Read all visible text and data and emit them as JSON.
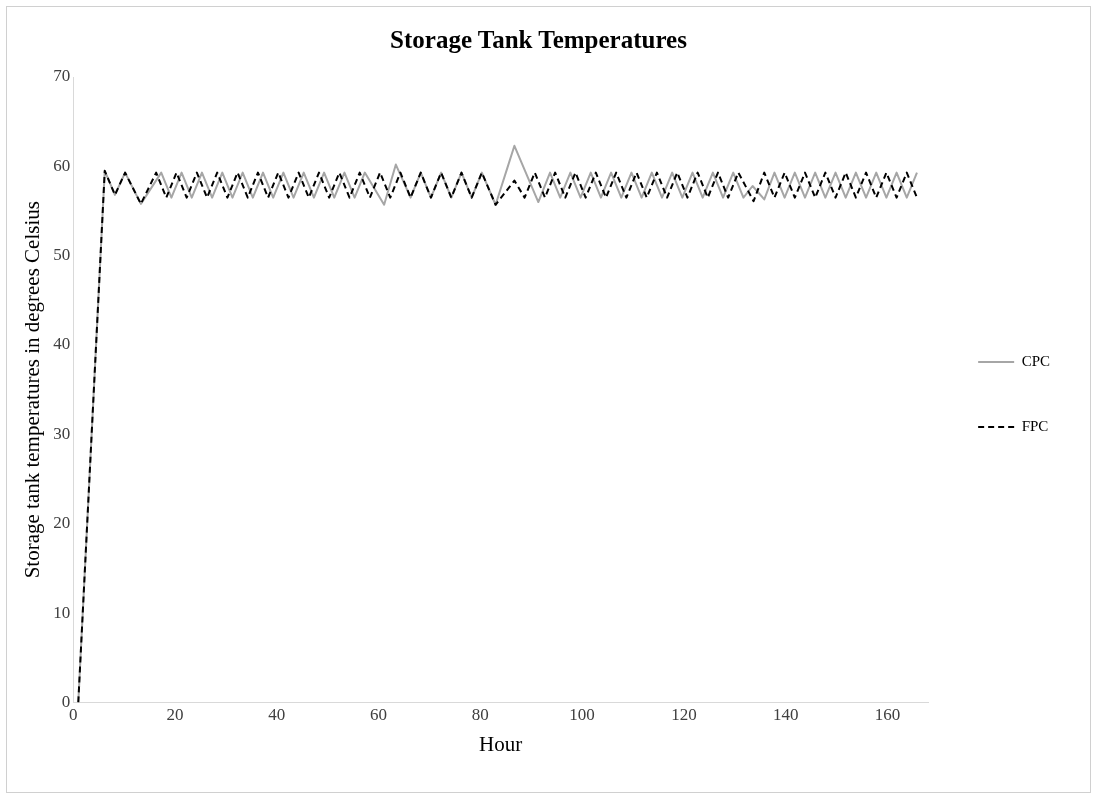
{
  "chart_data": {
    "type": "line",
    "title": "Storage Tank Temperatures",
    "xlabel": "Hour",
    "ylabel": "Storage tank temperatures in degrees Celsius",
    "xlim": [
      0,
      168
    ],
    "xticks": [
      0,
      20,
      40,
      60,
      80,
      100,
      120,
      140,
      160
    ],
    "ylim": [
      0,
      70
    ],
    "yticks": [
      0,
      10,
      20,
      30,
      40,
      50,
      60,
      70
    ],
    "grid": false,
    "legend": "right",
    "marker": "none",
    "series": [
      {
        "name": "CPC",
        "color": "#a6a6a6",
        "line_style": "solid",
        "x": [
          1,
          6.2,
          8.2,
          10.2,
          13.3,
          17.3,
          19.3,
          21.3,
          23.3,
          25.3,
          27.3,
          29.3,
          31.3,
          33.3,
          35.3,
          37.3,
          39.3,
          41.3,
          43.3,
          45.3,
          47.3,
          49.3,
          51.3,
          53.3,
          55.3,
          57.3,
          61.1,
          63.4,
          66.3,
          68.3,
          70.3,
          72.3,
          74.3,
          76.3,
          78.3,
          80.3,
          83,
          86.7,
          91.4,
          93.7,
          95.7,
          97.7,
          99.7,
          101.7,
          103.7,
          105.7,
          107.7,
          109.7,
          111.7,
          113.7,
          115.7,
          117.7,
          119.7,
          121.7,
          123.7,
          125.7,
          127.7,
          129.7,
          131.7,
          133.5,
          135.8,
          137.8,
          139.8,
          141.8,
          143.8,
          145.8,
          147.8,
          149.8,
          151.8,
          153.8,
          155.8,
          157.8,
          159.8,
          161.8,
          163.8,
          165.8
        ],
        "values": [
          0,
          59.5,
          56.8,
          59.3,
          55.8,
          59.3,
          56.5,
          59.3,
          56.5,
          59.3,
          56.5,
          59.3,
          56.5,
          59.3,
          56.5,
          59.3,
          56.5,
          59.3,
          56.5,
          59.3,
          56.5,
          59.3,
          56.5,
          59.3,
          56.5,
          59.3,
          55.7,
          60.2,
          56.5,
          59.3,
          56.5,
          59.3,
          56.5,
          59.3,
          56.5,
          59.3,
          55.7,
          62.3,
          56,
          59.3,
          56.5,
          59.3,
          56.5,
          59.3,
          56.5,
          59.3,
          56.5,
          59.3,
          56.5,
          59.3,
          56.5,
          59.3,
          56.5,
          59.3,
          56.5,
          59.3,
          56.5,
          59.3,
          56.5,
          57.8,
          56.3,
          59.3,
          56.5,
          59.3,
          56.5,
          59.3,
          56.5,
          59.3,
          56.5,
          59.3,
          56.5,
          59.3,
          56.5,
          59.3,
          56.5,
          59.3
        ]
      },
      {
        "name": "FPC",
        "color": "#000000",
        "line_style": "dashed",
        "x": [
          1,
          6.2,
          8.2,
          10.2,
          13.3,
          16.3,
          18.3,
          20.3,
          22.3,
          24.3,
          26.3,
          28.3,
          30.3,
          32.3,
          34.3,
          36.3,
          38.3,
          40.3,
          42.3,
          44.3,
          46.3,
          48.3,
          50.3,
          52.3,
          54.3,
          56.3,
          58.3,
          60.3,
          62.3,
          64.3,
          66.3,
          68.3,
          70.3,
          72.3,
          74.3,
          76.3,
          78.3,
          80.3,
          83,
          86.7,
          88.7,
          90.7,
          92.7,
          94.7,
          96.7,
          98.7,
          100.7,
          102.7,
          104.7,
          106.7,
          108.7,
          110.7,
          112.7,
          114.7,
          116.7,
          118.7,
          120.7,
          122.7,
          124.7,
          126.7,
          128.7,
          130.7,
          133.7,
          135.8,
          137.8,
          139.8,
          141.8,
          143.8,
          145.8,
          147.8,
          149.8,
          151.8,
          153.8,
          155.8,
          157.8,
          159.8,
          161.8,
          163.8,
          165.8
        ],
        "values": [
          0,
          59.5,
          56.8,
          59.3,
          55.8,
          59.3,
          56.5,
          59.3,
          56.5,
          59.3,
          56.5,
          59.3,
          56.5,
          59.3,
          56.5,
          59.3,
          56.5,
          59.3,
          56.5,
          59.3,
          56.5,
          59.3,
          56.5,
          59.3,
          56.5,
          59.3,
          56.5,
          59.3,
          56.5,
          59.3,
          56.5,
          59.3,
          56.5,
          59.3,
          56.5,
          59.3,
          56.5,
          59.3,
          55.7,
          58.4,
          56.5,
          59.3,
          56.5,
          59.3,
          56.5,
          59.3,
          56.5,
          59.3,
          56.5,
          59.3,
          56.5,
          59.3,
          56.5,
          59.3,
          56.5,
          59.3,
          56.5,
          59.3,
          56.5,
          59.3,
          56.5,
          59.3,
          56.1,
          59.3,
          56.5,
          59.3,
          56.5,
          59.3,
          56.5,
          59.3,
          56.5,
          59.3,
          56.5,
          59.3,
          56.5,
          59.3,
          56.5,
          59.3,
          56.5
        ]
      }
    ]
  }
}
